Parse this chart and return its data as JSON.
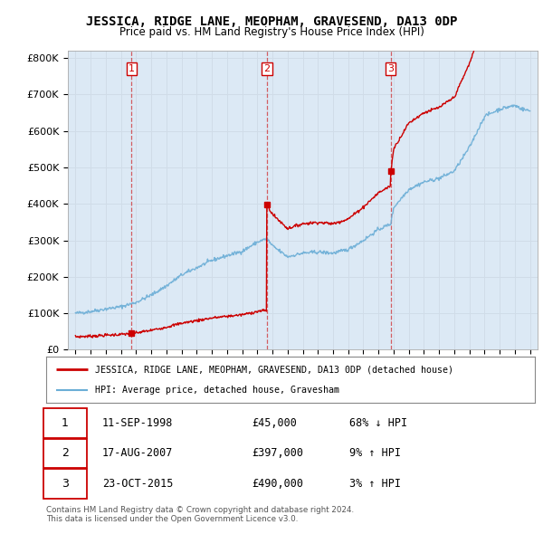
{
  "title": "JESSICA, RIDGE LANE, MEOPHAM, GRAVESEND, DA13 0DP",
  "subtitle": "Price paid vs. HM Land Registry's House Price Index (HPI)",
  "legend_line1": "JESSICA, RIDGE LANE, MEOPHAM, GRAVESEND, DA13 0DP (detached house)",
  "legend_line2": "HPI: Average price, detached house, Gravesham",
  "footer1": "Contains HM Land Registry data © Crown copyright and database right 2024.",
  "footer2": "This data is licensed under the Open Government Licence v3.0.",
  "transactions": [
    {
      "num": 1,
      "date": "11-SEP-1998",
      "price": "£45,000",
      "hpi": "68% ↓ HPI",
      "year": 1998.71
    },
    {
      "num": 2,
      "date": "17-AUG-2007",
      "price": "£397,000",
      "hpi": "9% ↑ HPI",
      "year": 2007.63
    },
    {
      "num": 3,
      "date": "23-OCT-2015",
      "price": "£490,000",
      "hpi": "3% ↑ HPI",
      "year": 2015.81
    }
  ],
  "sale_years": [
    1998.71,
    2007.63,
    2015.81
  ],
  "sale_prices": [
    45000,
    397000,
    490000
  ],
  "xlim": [
    1994.5,
    2025.5
  ],
  "ylim": [
    0,
    820000
  ],
  "yticks": [
    0,
    100000,
    200000,
    300000,
    400000,
    500000,
    600000,
    700000,
    800000
  ],
  "ytick_labels": [
    "£0",
    "£100K",
    "£200K",
    "£300K",
    "£400K",
    "£500K",
    "£600K",
    "£700K",
    "£800K"
  ],
  "red_color": "#cc0000",
  "blue_color": "#6baed6",
  "vline_color": "#cc0000",
  "grid_color": "#d0dce8",
  "bg_color": "#dce9f5",
  "background_color": "#ffffff"
}
